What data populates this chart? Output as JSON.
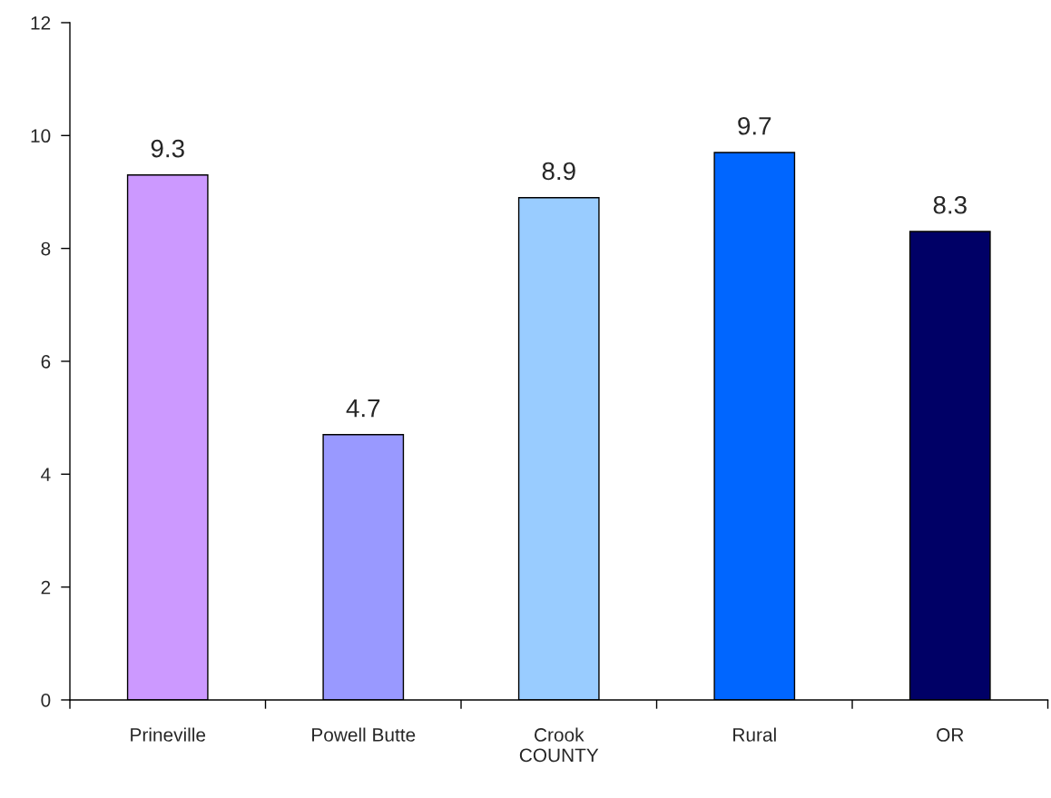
{
  "chart_data": {
    "type": "bar",
    "categories": [
      "Prineville",
      "Powell Butte",
      "Crook\nCOUNTY",
      "Rural",
      "OR"
    ],
    "values": [
      9.3,
      4.7,
      8.9,
      9.7,
      8.3
    ],
    "colors": [
      "#cc99ff",
      "#9999ff",
      "#99ccff",
      "#0066ff",
      "#000066"
    ],
    "ylim": [
      0,
      12
    ],
    "yticks": [
      0,
      2,
      4,
      6,
      8,
      10,
      12
    ],
    "data_labels": true,
    "grid": false,
    "legend": false
  }
}
